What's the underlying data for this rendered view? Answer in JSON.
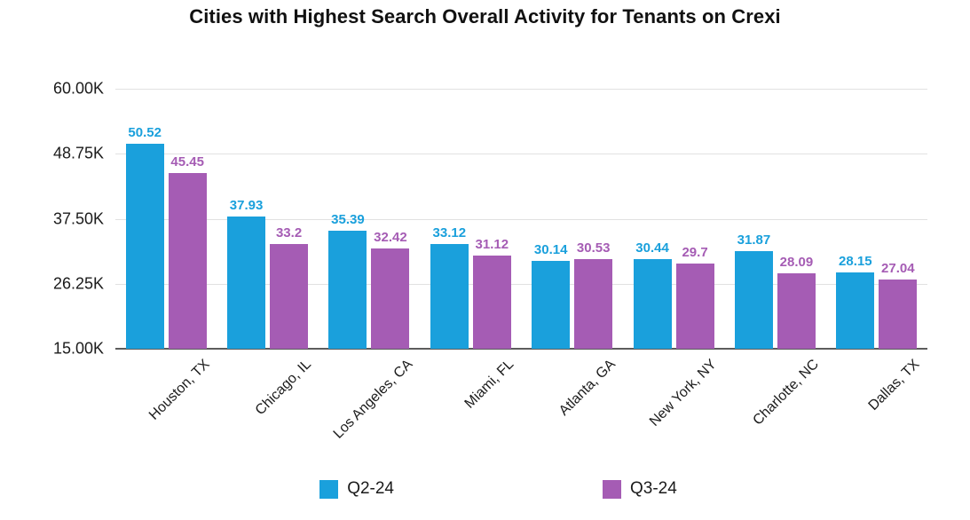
{
  "chart_data": {
    "type": "bar",
    "title": "Cities with Highest Search Overall Activity for Tenants on Crexi",
    "categories": [
      "Houston, TX",
      "Chicago, IL",
      "Los Angeles, CA",
      "Miami, FL",
      "Atlanta, GA",
      "New York, NY",
      "Charlotte, NC",
      "Dallas, TX"
    ],
    "series": [
      {
        "name": "Q2-24",
        "color": "#1AA0DC",
        "values": [
          50.52,
          37.93,
          35.39,
          33.12,
          30.14,
          30.44,
          31.87,
          28.15
        ]
      },
      {
        "name": "Q3-24",
        "color": "#A55CB4",
        "values": [
          45.45,
          33.2,
          32.42,
          31.12,
          30.53,
          29.7,
          28.09,
          27.04
        ]
      }
    ],
    "units": "thousands (K)",
    "ylim": [
      15,
      60
    ],
    "yticks": {
      "labels": [
        "60.00K",
        "48.75K",
        "37.50K",
        "26.25K",
        "15.00K"
      ],
      "values": [
        60,
        48.75,
        37.5,
        26.25,
        15
      ]
    },
    "grid": "horizontal gridlines at y ticks",
    "legend_position": "bottom-center",
    "value_labels": "above each bar, colored to match series"
  },
  "colors": {
    "background": "#FFFFFF",
    "grid_line": "#E1E1E1",
    "axis_line": "#5C5C5C",
    "text": "#1B1B1B",
    "q2_blue": "#1AA0DC",
    "q3_purple": "#A55CB4"
  }
}
